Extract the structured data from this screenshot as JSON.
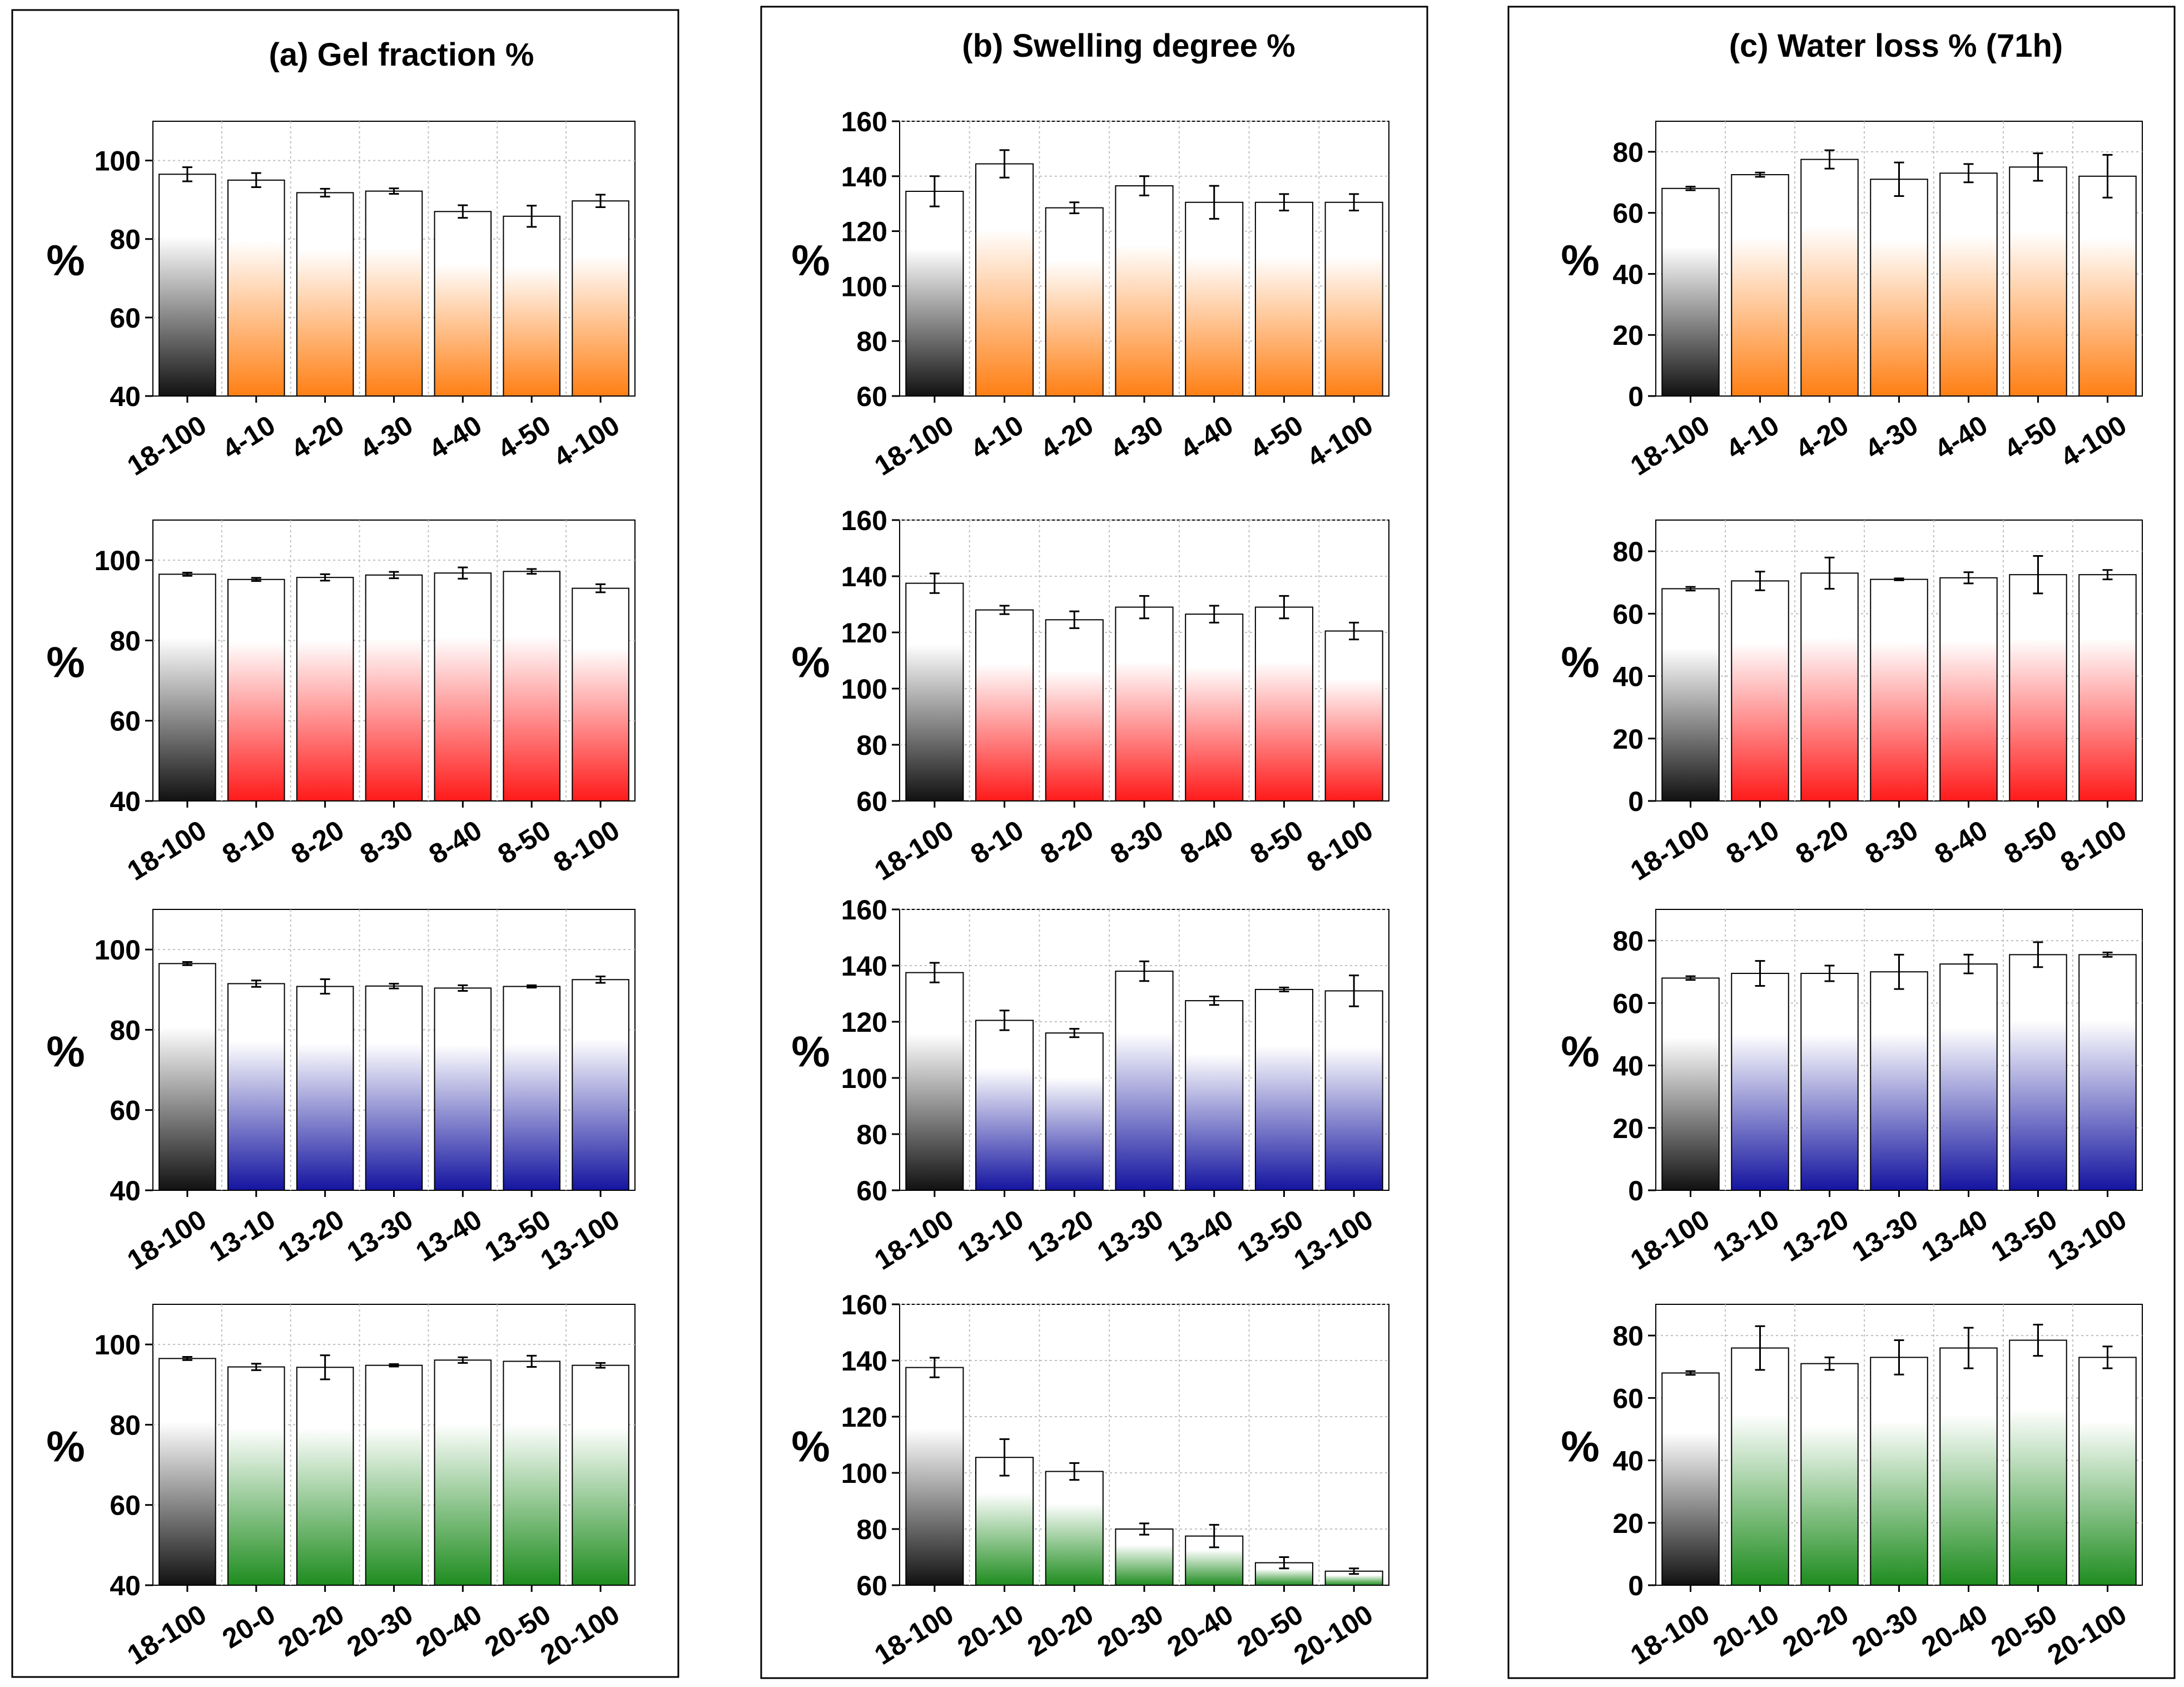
{
  "colors": {
    "black": "#111111",
    "orange": "#FF7F14",
    "red": "#FF1A1A",
    "blue": "#1414A0",
    "green": "#1E8C1E",
    "grid": "#BFBFBF",
    "axis": "#000000"
  },
  "panels": [
    {
      "title": "(a) Gel fraction %"
    },
    {
      "title": "(b) Swelling degree %"
    },
    {
      "title": "(c) Water loss % (71h)"
    }
  ],
  "chart_data": [
    {
      "type": "bar",
      "panel": 0,
      "row": 0,
      "title": "(a) Gel fraction %",
      "ylabel": "%",
      "ylim": [
        40,
        110
      ],
      "yticks": [
        40,
        60,
        80,
        100
      ],
      "grid": true,
      "accent": "orange",
      "categories": [
        "18-100",
        "4-10",
        "4-20",
        "4-30",
        "4-40",
        "4-50",
        "4-100"
      ],
      "values": [
        96.5,
        95,
        91.8,
        92.2,
        87,
        85.8,
        89.7
      ],
      "errors": [
        1.8,
        1.8,
        1,
        0.7,
        1.6,
        2.7,
        1.6
      ]
    },
    {
      "type": "bar",
      "panel": 0,
      "row": 1,
      "ylabel": "%",
      "ylim": [
        40,
        110
      ],
      "yticks": [
        40,
        60,
        80,
        100
      ],
      "grid": true,
      "accent": "red",
      "categories": [
        "18-100",
        "8-10",
        "8-20",
        "8-30",
        "8-40",
        "8-50",
        "8-100"
      ],
      "values": [
        96.5,
        95.2,
        95.7,
        96.3,
        96.8,
        97.2,
        93
      ],
      "errors": [
        0.4,
        0.4,
        0.8,
        0.8,
        1.4,
        0.6,
        1
      ]
    },
    {
      "type": "bar",
      "panel": 0,
      "row": 2,
      "ylabel": "%",
      "ylim": [
        40,
        110
      ],
      "yticks": [
        40,
        60,
        80,
        100
      ],
      "grid": true,
      "accent": "blue",
      "categories": [
        "18-100",
        "13-10",
        "13-20",
        "13-30",
        "13-40",
        "13-50",
        "13-100"
      ],
      "values": [
        96.5,
        91.5,
        90.8,
        90.9,
        90.4,
        90.8,
        92.5
      ],
      "errors": [
        0.4,
        0.8,
        1.8,
        0.6,
        0.7,
        0.3,
        0.8
      ]
    },
    {
      "type": "bar",
      "panel": 0,
      "row": 3,
      "ylabel": "%",
      "ylim": [
        40,
        110
      ],
      "yticks": [
        40,
        60,
        80,
        100
      ],
      "grid": true,
      "accent": "green",
      "categories": [
        "18-100",
        "20-0",
        "20-20",
        "20-30",
        "20-40",
        "20-50",
        "20-100"
      ],
      "values": [
        96.5,
        94.4,
        94.3,
        94.8,
        96.1,
        95.8,
        94.8
      ],
      "errors": [
        0.4,
        0.8,
        3,
        0.3,
        0.7,
        1.4,
        0.6
      ]
    },
    {
      "type": "bar",
      "panel": 1,
      "row": 0,
      "title": "(b) Swelling degree %",
      "ylabel": "%",
      "ylim": [
        60,
        160
      ],
      "yticks": [
        60,
        80,
        100,
        120,
        140,
        160
      ],
      "grid": true,
      "accent": "orange",
      "categories": [
        "18-100",
        "4-10",
        "4-20",
        "4-30",
        "4-40",
        "4-50",
        "4-100"
      ],
      "values": [
        134.5,
        144.5,
        128.5,
        136.5,
        130.5,
        130.5,
        130.5
      ],
      "errors": [
        5.5,
        5,
        2,
        3.5,
        6,
        3,
        3
      ]
    },
    {
      "type": "bar",
      "panel": 1,
      "row": 1,
      "ylabel": "%",
      "ylim": [
        60,
        160
      ],
      "yticks": [
        60,
        80,
        100,
        120,
        140,
        160
      ],
      "grid": true,
      "accent": "red",
      "categories": [
        "18-100",
        "8-10",
        "8-20",
        "8-30",
        "8-40",
        "8-50",
        "8-100"
      ],
      "values": [
        137.5,
        128,
        124.5,
        129,
        126.5,
        129,
        120.5
      ],
      "errors": [
        3.5,
        1.5,
        3,
        4,
        3,
        4,
        3
      ]
    },
    {
      "type": "bar",
      "panel": 1,
      "row": 2,
      "ylabel": "%",
      "ylim": [
        60,
        160
      ],
      "yticks": [
        60,
        80,
        100,
        120,
        140,
        160
      ],
      "grid": true,
      "accent": "blue",
      "categories": [
        "18-100",
        "13-10",
        "13-20",
        "13-30",
        "13-40",
        "13-50",
        "13-100"
      ],
      "values": [
        137.5,
        120.5,
        116,
        138,
        127.5,
        131.5,
        131
      ],
      "errors": [
        3.5,
        3.5,
        1.5,
        3.5,
        1.5,
        0.7,
        5.5
      ]
    },
    {
      "type": "bar",
      "panel": 1,
      "row": 3,
      "ylabel": "%",
      "ylim": [
        60,
        160
      ],
      "yticks": [
        60,
        80,
        100,
        120,
        140,
        160
      ],
      "grid": true,
      "accent": "green",
      "categories": [
        "18-100",
        "20-10",
        "20-20",
        "20-30",
        "20-40",
        "20-50",
        "20-100"
      ],
      "values": [
        137.5,
        105.5,
        100.5,
        80,
        77.5,
        68,
        65
      ],
      "errors": [
        3.5,
        6.5,
        3,
        2,
        4,
        2,
        1
      ]
    },
    {
      "type": "bar",
      "panel": 2,
      "row": 0,
      "title": "(c) Water loss % (71h)",
      "ylabel": "%",
      "ylim": [
        0,
        90
      ],
      "yticks": [
        0,
        20,
        40,
        60,
        80
      ],
      "grid": true,
      "accent": "orange",
      "categories": [
        "18-100",
        "4-10",
        "4-20",
        "4-30",
        "4-40",
        "4-50",
        "4-100"
      ],
      "values": [
        68,
        72.5,
        77.5,
        71,
        73,
        75,
        72
      ],
      "errors": [
        0.6,
        0.7,
        3,
        5.5,
        3,
        4.5,
        7
      ]
    },
    {
      "type": "bar",
      "panel": 2,
      "row": 1,
      "ylabel": "%",
      "ylim": [
        0,
        90
      ],
      "yticks": [
        0,
        20,
        40,
        60,
        80
      ],
      "grid": true,
      "accent": "red",
      "categories": [
        "18-100",
        "8-10",
        "8-20",
        "8-30",
        "8-40",
        "8-50",
        "8-100"
      ],
      "values": [
        68,
        70.5,
        73,
        71,
        71.5,
        72.5,
        72.5
      ],
      "errors": [
        0.6,
        3,
        5,
        0.3,
        1.8,
        6,
        1.5
      ]
    },
    {
      "type": "bar",
      "panel": 2,
      "row": 2,
      "ylabel": "%",
      "ylim": [
        0,
        90
      ],
      "yticks": [
        0,
        20,
        40,
        60,
        80
      ],
      "grid": true,
      "accent": "blue",
      "categories": [
        "18-100",
        "13-10",
        "13-20",
        "13-30",
        "13-40",
        "13-50",
        "13-100"
      ],
      "values": [
        68,
        69.5,
        69.5,
        70,
        72.5,
        75.5,
        75.5
      ],
      "errors": [
        0.6,
        4,
        2.5,
        5.5,
        3,
        4,
        0.7
      ]
    },
    {
      "type": "bar",
      "panel": 2,
      "row": 3,
      "ylabel": "%",
      "ylim": [
        0,
        90
      ],
      "yticks": [
        0,
        20,
        40,
        60,
        80
      ],
      "grid": true,
      "accent": "green",
      "categories": [
        "18-100",
        "20-10",
        "20-20",
        "20-30",
        "20-40",
        "20-50",
        "20-100"
      ],
      "values": [
        68,
        76,
        71,
        73,
        76,
        78.5,
        73
      ],
      "errors": [
        0.6,
        7,
        2,
        5.5,
        6.5,
        5,
        3.5
      ]
    }
  ]
}
